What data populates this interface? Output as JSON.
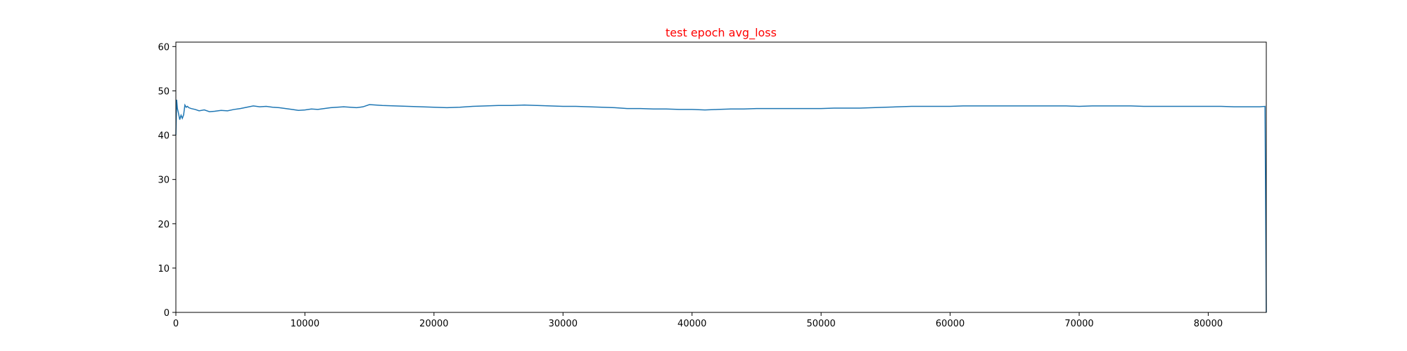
{
  "chart_data": {
    "type": "line",
    "title": "test epoch avg_loss",
    "title_color": "#ff0000",
    "xlabel": "",
    "ylabel": "",
    "xlim": [
      0,
      84500
    ],
    "ylim": [
      0,
      61
    ],
    "xticks": [
      0,
      10000,
      20000,
      30000,
      40000,
      50000,
      60000,
      70000,
      80000
    ],
    "yticks": [
      0,
      10,
      20,
      30,
      40,
      50,
      60
    ],
    "grid": false,
    "line_color": "#1f77b4",
    "series": [
      {
        "x": [
          0,
          60,
          120,
          200,
          300,
          400,
          500,
          600,
          700,
          800,
          900,
          1000,
          1200,
          1500,
          1800,
          2200,
          2600,
          3000,
          3500,
          4000,
          4500,
          5000,
          5500,
          6000,
          6500,
          7000,
          7500,
          8000,
          8500,
          9000,
          9500,
          10000,
          10500,
          11000,
          11500,
          12000,
          12500,
          13000,
          13500,
          14000,
          14500,
          15000,
          15500,
          16000,
          17000,
          18000,
          19000,
          20000,
          21000,
          22000,
          23000,
          24000,
          25000,
          26000,
          27000,
          28000,
          29000,
          30000,
          31000,
          32000,
          33000,
          34000,
          35000,
          36000,
          37000,
          38000,
          39000,
          40000,
          41000,
          42000,
          43000,
          44000,
          45000,
          46000,
          47000,
          48000,
          49000,
          50000,
          51000,
          52000,
          53000,
          54000,
          55000,
          56000,
          57000,
          58000,
          59000,
          60000,
          61000,
          62000,
          63000,
          64000,
          65000,
          66000,
          67000,
          68000,
          69000,
          70000,
          71000,
          72000,
          73000,
          74000,
          75000,
          76000,
          77000,
          78000,
          79000,
          80000,
          81000,
          82000,
          83000,
          84000,
          84400,
          84500
        ],
        "y": [
          40,
          48,
          46,
          45,
          43.5,
          44.5,
          43.8,
          44.6,
          46.8,
          46.3,
          46.5,
          46.2,
          46.0,
          45.8,
          45.5,
          45.7,
          45.3,
          45.4,
          45.6,
          45.5,
          45.8,
          46.0,
          46.3,
          46.6,
          46.4,
          46.5,
          46.3,
          46.2,
          46.0,
          45.8,
          45.6,
          45.7,
          45.9,
          45.8,
          46.0,
          46.2,
          46.3,
          46.4,
          46.3,
          46.2,
          46.4,
          46.9,
          46.8,
          46.7,
          46.6,
          46.5,
          46.4,
          46.3,
          46.2,
          46.3,
          46.5,
          46.6,
          46.7,
          46.7,
          46.8,
          46.7,
          46.6,
          46.5,
          46.5,
          46.4,
          46.3,
          46.2,
          46.0,
          46.0,
          45.9,
          45.9,
          45.8,
          45.8,
          45.7,
          45.8,
          45.9,
          45.9,
          46.0,
          46.0,
          46.0,
          46.0,
          46.0,
          46.0,
          46.1,
          46.1,
          46.1,
          46.2,
          46.3,
          46.4,
          46.5,
          46.5,
          46.5,
          46.5,
          46.6,
          46.6,
          46.6,
          46.6,
          46.6,
          46.6,
          46.6,
          46.6,
          46.6,
          46.5,
          46.6,
          46.6,
          46.6,
          46.6,
          46.5,
          46.5,
          46.5,
          46.5,
          46.5,
          46.5,
          46.5,
          46.4,
          46.4,
          46.4,
          46.5,
          0
        ]
      }
    ]
  }
}
